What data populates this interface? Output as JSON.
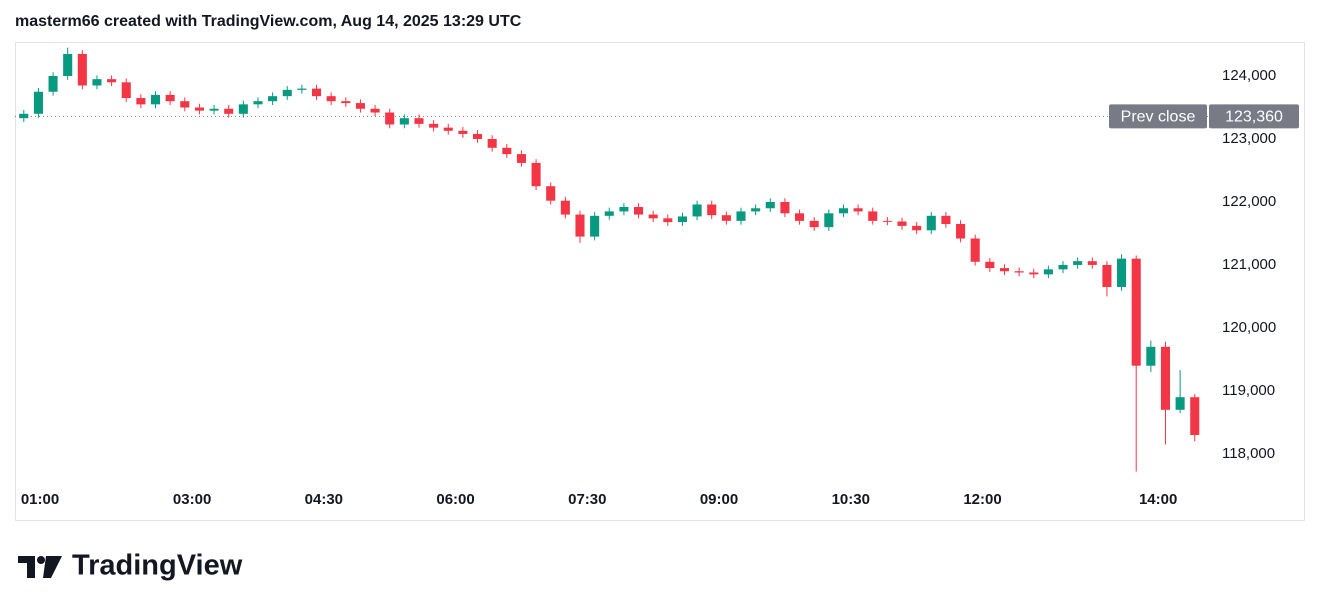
{
  "chart_data": {
    "type": "candlestick",
    "title": "masterm66 created with TradingView.com, Aug 14, 2025 13:29 UTC",
    "source": "TradingView",
    "up_color": "#089981",
    "down_color": "#f23645",
    "x": [
      "01:00",
      "01:10",
      "01:20",
      "01:30",
      "01:40",
      "01:50",
      "02:00",
      "02:10",
      "02:20",
      "02:30",
      "02:40",
      "02:50",
      "03:00",
      "03:10",
      "03:20",
      "03:30",
      "03:40",
      "03:50",
      "04:00",
      "04:10",
      "04:20",
      "04:30",
      "04:40",
      "04:50",
      "05:00",
      "05:10",
      "05:20",
      "05:30",
      "05:40",
      "05:50",
      "06:00",
      "06:10",
      "06:20",
      "06:30",
      "06:40",
      "06:50",
      "07:00",
      "07:10",
      "07:20",
      "07:30",
      "07:40",
      "07:50",
      "08:00",
      "08:10",
      "08:20",
      "08:30",
      "08:40",
      "08:50",
      "09:00",
      "09:10",
      "09:20",
      "09:30",
      "09:40",
      "09:50",
      "10:00",
      "10:10",
      "10:20",
      "10:30",
      "10:40",
      "10:50",
      "11:00",
      "11:10",
      "11:20",
      "11:30",
      "11:40",
      "11:50",
      "12:00",
      "12:10",
      "12:20",
      "12:30",
      "12:40",
      "12:50",
      "13:00",
      "13:10",
      "13:20",
      "13:30",
      "13:40",
      "13:50",
      "14:00",
      "14:10",
      "14:20"
    ],
    "open": [
      123330,
      123400,
      123750,
      124000,
      124350,
      123850,
      123950,
      123900,
      123650,
      123550,
      123700,
      123600,
      123500,
      123450,
      123480,
      123400,
      123550,
      123600,
      123680,
      123780,
      123800,
      123680,
      123600,
      123570,
      123480,
      123420,
      123230,
      123330,
      123240,
      123180,
      123130,
      123080,
      123000,
      122860,
      122760,
      122620,
      122250,
      122020,
      121800,
      121450,
      121780,
      121850,
      121920,
      121800,
      121740,
      121680,
      121770,
      121960,
      121790,
      121700,
      121850,
      121900,
      122000,
      121820,
      121700,
      121600,
      121820,
      121900,
      121850,
      121700,
      121690,
      121620,
      121550,
      121780,
      121650,
      121420,
      121050,
      120950,
      120900,
      120880,
      120850,
      120930,
      121000,
      121060,
      121000,
      120650,
      121100,
      119400,
      119700,
      118700,
      118900
    ],
    "high": [
      123460,
      123810,
      124060,
      124450,
      124410,
      124010,
      124010,
      123960,
      123710,
      123760,
      123760,
      123660,
      123560,
      123540,
      123540,
      123610,
      123660,
      123740,
      123840,
      123860,
      123860,
      123740,
      123660,
      123630,
      123540,
      123480,
      123390,
      123390,
      123300,
      123240,
      123190,
      123140,
      123060,
      122920,
      122820,
      122680,
      122310,
      122080,
      121860,
      121840,
      121910,
      121980,
      121980,
      121860,
      121800,
      121830,
      122020,
      122020,
      121850,
      121910,
      121960,
      122060,
      122060,
      121880,
      121760,
      121880,
      121960,
      121960,
      121910,
      121760,
      121750,
      121680,
      121840,
      121840,
      121710,
      121480,
      121110,
      121010,
      120960,
      120940,
      120990,
      121060,
      121120,
      121120,
      121060,
      121170,
      121150,
      119800,
      119780,
      119330,
      118950
    ],
    "low": [
      123270,
      123340,
      123690,
      123940,
      123790,
      123790,
      123840,
      123590,
      123490,
      123490,
      123540,
      123440,
      123390,
      123390,
      123340,
      123340,
      123490,
      123540,
      123620,
      123720,
      123620,
      123540,
      123510,
      123420,
      123360,
      123170,
      123170,
      123180,
      123120,
      123070,
      123020,
      122940,
      122800,
      122700,
      122560,
      122190,
      121960,
      121740,
      121350,
      121390,
      121720,
      121790,
      121740,
      121680,
      121620,
      121620,
      121710,
      121730,
      121640,
      121640,
      121790,
      121840,
      121760,
      121640,
      121540,
      121540,
      121760,
      121790,
      121640,
      121630,
      121560,
      121490,
      121490,
      121590,
      121360,
      120990,
      120890,
      120840,
      120820,
      120790,
      120790,
      120870,
      120940,
      120940,
      120500,
      120590,
      117720,
      119300,
      118150,
      118650,
      118200
    ],
    "close": [
      123400,
      123750,
      124000,
      124350,
      123850,
      123950,
      123900,
      123650,
      123550,
      123700,
      123600,
      123500,
      123450,
      123480,
      123400,
      123550,
      123600,
      123680,
      123780,
      123800,
      123680,
      123600,
      123570,
      123480,
      123420,
      123230,
      123330,
      123240,
      123180,
      123130,
      123080,
      123000,
      122860,
      122760,
      122620,
      122250,
      122020,
      121800,
      121450,
      121780,
      121850,
      121920,
      121800,
      121740,
      121680,
      121770,
      121960,
      121790,
      121700,
      121850,
      121900,
      122000,
      121820,
      121700,
      121600,
      121820,
      121900,
      121850,
      121700,
      121690,
      121620,
      121550,
      121780,
      121650,
      121420,
      121050,
      120950,
      120900,
      120880,
      120850,
      120930,
      121000,
      121060,
      121000,
      120650,
      121100,
      119400,
      119700,
      118700,
      118900,
      118300
    ],
    "xlim": [
      "00:59",
      "14:32"
    ],
    "xticks": [
      "01:00",
      "03:00",
      "04:30",
      "06:00",
      "07:30",
      "09:00",
      "10:30",
      "12:00",
      "14:00"
    ],
    "ylim": [
      116950,
      124540
    ],
    "yticks": [
      {
        "value": 118000,
        "label": "118,000"
      },
      {
        "value": 119000,
        "label": "119,000"
      },
      {
        "value": 120000,
        "label": "120,000"
      },
      {
        "value": 121000,
        "label": "121,000"
      },
      {
        "value": 122000,
        "label": "122,000"
      },
      {
        "value": 123000,
        "label": "123,000"
      },
      {
        "value": 124000,
        "label": "124,000"
      }
    ],
    "prev_close": {
      "label": "Prev close",
      "value": 123360,
      "value_label": "123,360"
    }
  }
}
